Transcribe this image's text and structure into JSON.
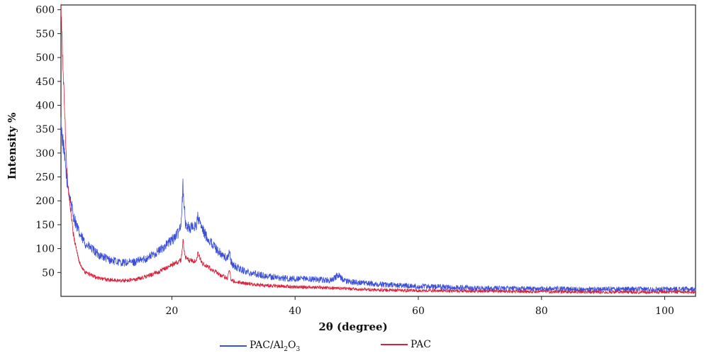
{
  "chart_data": {
    "type": "line",
    "title": "",
    "xlabel": "2θ (degree)",
    "ylabel": "Intensity %",
    "xlim": [
      2,
      105
    ],
    "ylim": [
      0,
      610
    ],
    "xticks": [
      20,
      40,
      60,
      80,
      100
    ],
    "yticks": [
      50,
      100,
      150,
      200,
      250,
      300,
      350,
      400,
      450,
      500,
      550,
      600
    ],
    "grid": false,
    "legend_position": "bottom",
    "series": [
      {
        "name": "PAC/Al2O3",
        "label_parts": [
          "PAC/Al",
          "2",
          "O",
          "3"
        ],
        "color": "#3b4fd9",
        "noise": 8,
        "x": [
          2,
          3,
          4,
          5,
          6,
          8,
          10,
          12,
          14,
          16,
          18,
          20,
          21,
          21.5,
          21.8,
          22.2,
          22.6,
          23,
          24,
          24.2,
          25,
          26,
          27,
          28,
          29,
          29.3,
          29.6,
          30,
          32,
          35,
          38,
          40,
          43,
          46,
          47,
          48,
          50,
          55,
          60,
          65,
          70,
          75,
          80,
          85,
          90,
          95,
          100,
          105
        ],
        "y": [
          360,
          240,
          170,
          130,
          110,
          88,
          76,
          70,
          72,
          80,
          96,
          118,
          132,
          155,
          232,
          150,
          146,
          142,
          150,
          165,
          138,
          118,
          103,
          88,
          78,
          96,
          72,
          64,
          52,
          43,
          38,
          36,
          36,
          33,
          45,
          32,
          29,
          24,
          21,
          19,
          17,
          16,
          16,
          15,
          15,
          15,
          15,
          15
        ]
      },
      {
        "name": "PAC",
        "label_parts": [
          "PAC"
        ],
        "color": "#d8203a",
        "noise": 5,
        "x": [
          2,
          2.5,
          3,
          4,
          5,
          6,
          8,
          10,
          12,
          14,
          16,
          18,
          20,
          21.5,
          21.8,
          22.2,
          23,
          24,
          24.2,
          25,
          26,
          27,
          28,
          29,
          29.3,
          29.6,
          30,
          32,
          35,
          40,
          45,
          50,
          55,
          60,
          70,
          80,
          90,
          100,
          105
        ],
        "y": [
          600,
          420,
          250,
          130,
          70,
          50,
          38,
          34,
          33,
          35,
          42,
          52,
          66,
          75,
          118,
          80,
          74,
          72,
          90,
          68,
          60,
          52,
          44,
          38,
          57,
          36,
          32,
          27,
          23,
          20,
          18,
          15,
          13,
          12,
          11,
          10,
          9,
          9,
          9
        ]
      }
    ]
  }
}
